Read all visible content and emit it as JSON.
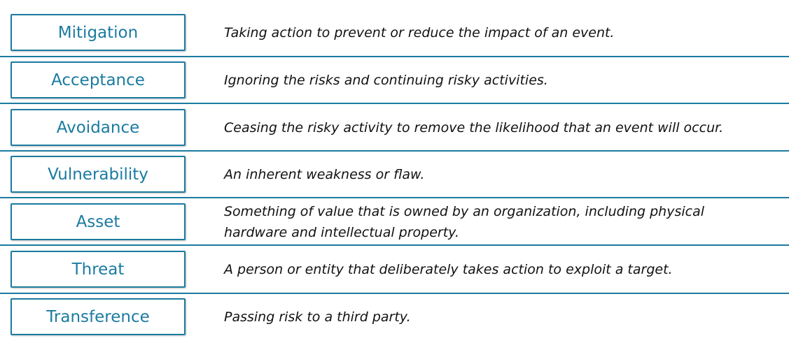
{
  "terms": [
    {
      "term": "Mitigation",
      "definition": "Taking action to prevent or reduce the impact of an event."
    },
    {
      "term": "Acceptance",
      "definition": "Ignoring the risks and continuing risky activities."
    },
    {
      "term": "Avoidance",
      "definition": "Ceasing the risky activity to remove the likelihood that an event will occur."
    },
    {
      "term": "Vulnerability",
      "definition": "An inherent weakness or flaw."
    },
    {
      "term": "Asset",
      "definition": "Something of value that is owned by an organization, including physical hardware and intellectual property."
    },
    {
      "term": "Threat",
      "definition": "A person or entity that deliberately takes action to exploit a target."
    },
    {
      "term": "Transference",
      "definition": "Passing risk to a third party."
    }
  ],
  "colors": {
    "accent": "#1b7ba0",
    "text": "#111111"
  }
}
